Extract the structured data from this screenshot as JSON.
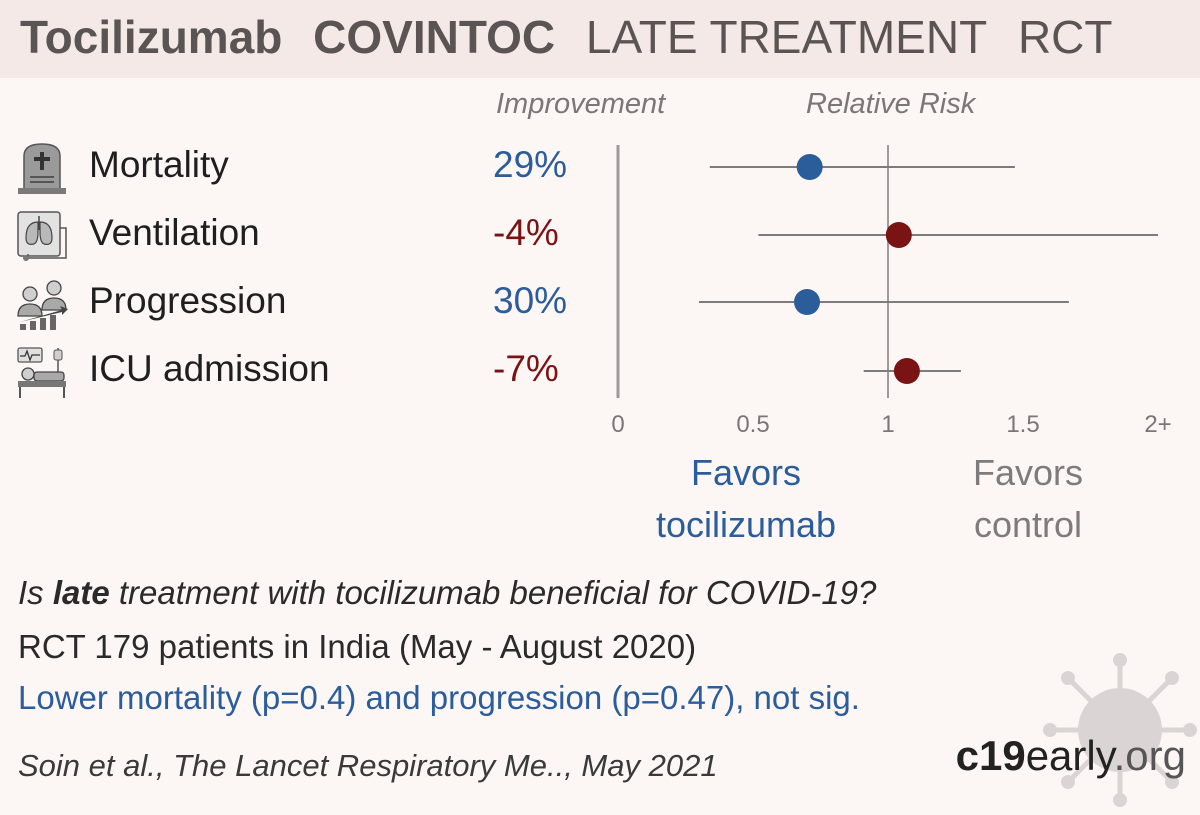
{
  "header": {
    "drug": "Tocilizumab",
    "trial": "COVINTOC",
    "stage": "LATE TREATMENT",
    "design": "RCT"
  },
  "columns": {
    "improvement": "Improvement",
    "relative_risk": "Relative Risk"
  },
  "outcomes": [
    {
      "label": "Mortality",
      "improvement": "29%",
      "icon": "tombstone-icon",
      "tone": "good"
    },
    {
      "label": "Ventilation",
      "improvement": "-4%",
      "icon": "ventilator-icon",
      "tone": "bad"
    },
    {
      "label": "Progression",
      "improvement": "30%",
      "icon": "progression-icon",
      "tone": "good"
    },
    {
      "label": "ICU admission",
      "improvement": "-7%",
      "icon": "icu-bed-icon",
      "tone": "bad"
    }
  ],
  "favors": {
    "left": [
      "Favors",
      "tocilizumab"
    ],
    "right": [
      "Favors",
      "control"
    ]
  },
  "summary": {
    "question_pre": "Is ",
    "question_bold": "late",
    "question_post": " treatment with tocilizumab beneficial for COVID-19?",
    "details": "RCT 179 patients in India (May - August 2020)",
    "result": "Lower mortality (p=0.4) and progression (p=0.47), not sig."
  },
  "citation": "Soin et al., The Lancet Respiratory Me.., May 2021",
  "brand": {
    "bold": "c19",
    "rest": "early",
    "tld": ".org"
  },
  "colors": {
    "good": "#2a5d9a",
    "bad": "#7a1414",
    "ci_line": "#7d7b7b",
    "ref_line": "#9c9a9a",
    "background": "#fcf6f5",
    "header_band": "#f5e9e7"
  },
  "chart_data": {
    "type": "scatter",
    "title": "Relative Risk",
    "xlabel": "",
    "ylabel": "",
    "x_ticks": [
      "0",
      "0.5",
      "1",
      "1.5",
      "2+"
    ],
    "xlim": [
      0,
      2
    ],
    "reference_line": 1,
    "categories": [
      "Mortality",
      "Ventilation",
      "Progression",
      "ICU admission"
    ],
    "series": [
      {
        "values": [
          0.71,
          1.04,
          0.7,
          1.07
        ]
      }
    ],
    "ci_lower": [
      0.34,
      0.52,
      0.3,
      0.91
    ],
    "ci_upper": [
      1.47,
      2.0,
      1.67,
      1.27
    ],
    "point_colors": [
      "good",
      "bad",
      "good",
      "bad"
    ]
  }
}
